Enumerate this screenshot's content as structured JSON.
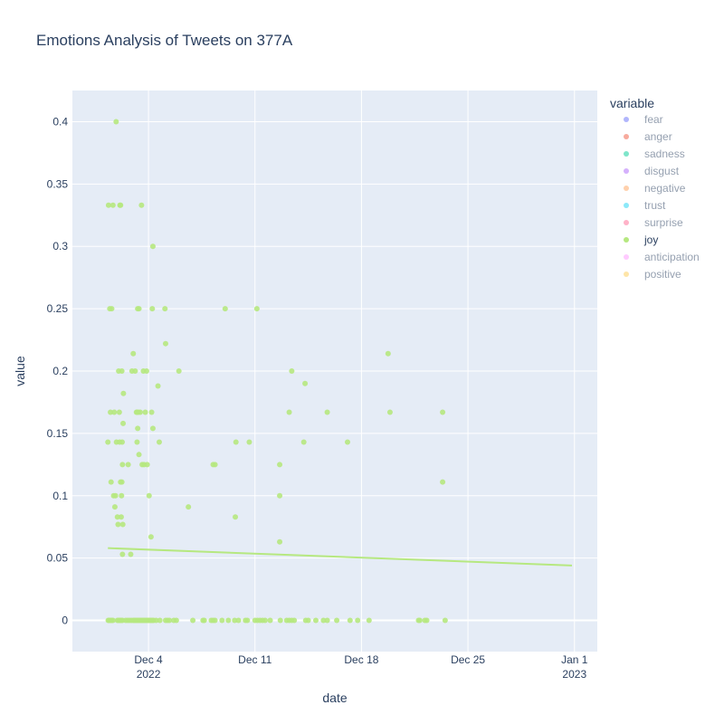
{
  "chart_data": {
    "type": "scatter",
    "title": "Emotions Analysis of Tweets on 377A",
    "xlabel": "date",
    "ylabel": "value",
    "xlim": [
      "2022-11-29T00:00",
      "2023-01-02T12:00"
    ],
    "ylim": [
      -0.025,
      0.425
    ],
    "x_ticks": [
      {
        "date": "2022-12-04",
        "label": "Dec 4",
        "sublabel": "2022"
      },
      {
        "date": "2022-12-11",
        "label": "Dec 11",
        "sublabel": ""
      },
      {
        "date": "2022-12-18",
        "label": "Dec 18",
        "sublabel": ""
      },
      {
        "date": "2022-12-25",
        "label": "Dec 25",
        "sublabel": ""
      },
      {
        "date": "2023-01-01",
        "label": "Jan 1",
        "sublabel": "2023"
      }
    ],
    "y_ticks": [
      {
        "value": 0,
        "label": "0"
      },
      {
        "value": 0.05,
        "label": "0.05"
      },
      {
        "value": 0.1,
        "label": "0.1"
      },
      {
        "value": 0.15,
        "label": "0.15"
      },
      {
        "value": 0.2,
        "label": "0.2"
      },
      {
        "value": 0.25,
        "label": "0.25"
      },
      {
        "value": 0.3,
        "label": "0.3"
      },
      {
        "value": 0.35,
        "label": "0.35"
      },
      {
        "value": 0.4,
        "label": "0.4"
      }
    ],
    "grid": true,
    "legend": {
      "title": "variable",
      "placement": "right",
      "active": "joy",
      "entries": [
        {
          "name": "fear",
          "color": "#636efa"
        },
        {
          "name": "anger",
          "color": "#EF553B"
        },
        {
          "name": "sadness",
          "color": "#00cc96"
        },
        {
          "name": "disgust",
          "color": "#ab63fa"
        },
        {
          "name": "negative",
          "color": "#FFA15A"
        },
        {
          "name": "trust",
          "color": "#19d3f3"
        },
        {
          "name": "surprise",
          "color": "#FF6692"
        },
        {
          "name": "joy",
          "color": "#B6E880"
        },
        {
          "name": "anticipation",
          "color": "#FF97FF"
        },
        {
          "name": "positive",
          "color": "#FECB52"
        }
      ]
    },
    "series": [
      {
        "name": "joy",
        "color": "#B6E880",
        "points": [
          [
            "2022-12-01T08:00",
            0.143
          ],
          [
            "2022-12-01T09:00",
            0.333
          ],
          [
            "2022-12-01T12:00",
            0.167
          ],
          [
            "2022-12-01T11:00",
            0.25
          ],
          [
            "2022-12-01T13:00",
            0.111
          ],
          [
            "2022-12-01T14:00",
            0.25
          ],
          [
            "2022-12-01T16:00",
            0.333
          ],
          [
            "2022-12-01T17:00",
            0.1
          ],
          [
            "2022-12-01T18:00",
            0.167
          ],
          [
            "2022-12-01T19:00",
            0.091
          ],
          [
            "2022-12-01T20:00",
            0.1
          ],
          [
            "2022-12-01T21:00",
            0.4
          ],
          [
            "2022-12-01T21:30",
            0.143
          ],
          [
            "2022-12-01T23:00",
            0.083
          ],
          [
            "2022-12-02T00:00",
            0.077
          ],
          [
            "2022-12-02T01:00",
            0.2
          ],
          [
            "2022-12-02T02:00",
            0.167
          ],
          [
            "2022-12-02T02:30",
            0.143
          ],
          [
            "2022-12-02T03:00",
            0.333
          ],
          [
            "2022-12-02T04:00",
            0.333
          ],
          [
            "2022-12-02T04:00",
            0.111
          ],
          [
            "2022-12-02T05:00",
            0.083
          ],
          [
            "2022-12-02T05:30",
            0.1
          ],
          [
            "2022-12-02T06:00",
            0.111
          ],
          [
            "2022-12-02T06:00",
            0.2
          ],
          [
            "2022-12-02T06:30",
            0.143
          ],
          [
            "2022-12-02T07:00",
            0.125
          ],
          [
            "2022-12-02T07:00",
            0.053
          ],
          [
            "2022-12-02T07:30",
            0.077
          ],
          [
            "2022-12-02T08:00",
            0.158
          ],
          [
            "2022-12-02T08:30",
            0.182
          ],
          [
            "2022-12-02T16:00",
            0.125
          ],
          [
            "2022-12-02T20:00",
            0.053
          ],
          [
            "2022-12-02T22:00",
            0.2
          ],
          [
            "2022-12-03T00:00",
            0.214
          ],
          [
            "2022-12-03T03:00",
            0.2
          ],
          [
            "2022-12-03T05:00",
            0.167
          ],
          [
            "2022-12-03T06:00",
            0.167
          ],
          [
            "2022-12-03T06:00",
            0.143
          ],
          [
            "2022-12-03T07:00",
            0.25
          ],
          [
            "2022-12-03T07:00",
            0.154
          ],
          [
            "2022-12-03T08:00",
            0.167
          ],
          [
            "2022-12-03T09:00",
            0.25
          ],
          [
            "2022-12-03T09:00",
            0.133
          ],
          [
            "2022-12-03T11:00",
            0.167
          ],
          [
            "2022-12-03T13:00",
            0.333
          ],
          [
            "2022-12-03T14:00",
            0.125
          ],
          [
            "2022-12-03T16:00",
            0.2
          ],
          [
            "2022-12-03T17:00",
            0.125
          ],
          [
            "2022-12-03T19:00",
            0.167
          ],
          [
            "2022-12-03T21:00",
            0.2
          ],
          [
            "2022-12-03T22:00",
            0.125
          ],
          [
            "2022-12-04T01:00",
            0.1
          ],
          [
            "2022-12-04T04:00",
            0.067
          ],
          [
            "2022-12-04T06:00",
            0.25
          ],
          [
            "2022-12-04T05:00",
            0.167
          ],
          [
            "2022-12-04T07:00",
            0.3
          ],
          [
            "2022-12-04T07:00",
            0.154
          ],
          [
            "2022-12-04T15:00",
            0.188
          ],
          [
            "2022-12-04T17:00",
            0.143
          ],
          [
            "2022-12-05T02:00",
            0.25
          ],
          [
            "2022-12-05T03:00",
            0.222
          ],
          [
            "2022-12-06T00:00",
            0.2
          ],
          [
            "2022-12-06T15:00",
            0.091
          ],
          [
            "2022-12-08T06:00",
            0.125
          ],
          [
            "2022-12-08T09:00",
            0.125
          ],
          [
            "2022-12-09T01:00",
            0.25
          ],
          [
            "2022-12-09T18:00",
            0.143
          ],
          [
            "2022-12-09T17:00",
            0.083
          ],
          [
            "2022-12-10T15:00",
            0.143
          ],
          [
            "2022-12-11T03:00",
            0.25
          ],
          [
            "2022-12-12T15:00",
            0.125
          ],
          [
            "2022-12-12T15:00",
            0.1
          ],
          [
            "2022-12-12T15:00",
            0.063
          ],
          [
            "2022-12-13T06:00",
            0.167
          ],
          [
            "2022-12-13T10:00",
            0.2
          ],
          [
            "2022-12-14T05:00",
            0.143
          ],
          [
            "2022-12-14T07:00",
            0.19
          ],
          [
            "2022-12-15T18:00",
            0.167
          ],
          [
            "2022-12-17T02:00",
            0.143
          ],
          [
            "2022-12-19T18:00",
            0.214
          ],
          [
            "2022-12-19T21:00",
            0.167
          ],
          [
            "2022-12-23T08:00",
            0.167
          ],
          [
            "2022-12-23T08:00",
            0.111
          ],
          [
            "2022-12-01T08:30",
            0
          ],
          [
            "2022-12-01T10:00",
            0
          ],
          [
            "2022-12-01T12:00",
            0
          ],
          [
            "2022-12-01T14:00",
            0
          ],
          [
            "2022-12-01T16:00",
            0
          ],
          [
            "2022-12-01T23:00",
            0
          ],
          [
            "2022-12-02T01:00",
            0
          ],
          [
            "2022-12-02T03:00",
            0
          ],
          [
            "2022-12-02T05:00",
            0
          ],
          [
            "2022-12-02T07:00",
            0
          ],
          [
            "2022-12-02T12:00",
            0
          ],
          [
            "2022-12-02T15:00",
            0
          ],
          [
            "2022-12-02T18:00",
            0
          ],
          [
            "2022-12-02T21:00",
            0
          ],
          [
            "2022-12-03T00:00",
            0
          ],
          [
            "2022-12-03T02:00",
            0
          ],
          [
            "2022-12-03T04:00",
            0
          ],
          [
            "2022-12-03T06:00",
            0
          ],
          [
            "2022-12-03T08:00",
            0
          ],
          [
            "2022-12-03T10:00",
            0
          ],
          [
            "2022-12-03T12:00",
            0
          ],
          [
            "2022-12-03T14:00",
            0
          ],
          [
            "2022-12-03T16:00",
            0
          ],
          [
            "2022-12-03T18:00",
            0
          ],
          [
            "2022-12-03T20:00",
            0
          ],
          [
            "2022-12-03T22:00",
            0
          ],
          [
            "2022-12-04T00:00",
            0
          ],
          [
            "2022-12-04T02:00",
            0
          ],
          [
            "2022-12-04T04:00",
            0
          ],
          [
            "2022-12-04T06:00",
            0
          ],
          [
            "2022-12-04T08:00",
            0
          ],
          [
            "2022-12-04T12:00",
            0
          ],
          [
            "2022-12-04T18:00",
            0
          ],
          [
            "2022-12-05T03:00",
            0
          ],
          [
            "2022-12-05T06:00",
            0
          ],
          [
            "2022-12-05T09:00",
            0
          ],
          [
            "2022-12-05T16:00",
            0
          ],
          [
            "2022-12-05T20:00",
            0
          ],
          [
            "2022-12-06T22:00",
            0
          ],
          [
            "2022-12-07T14:00",
            0
          ],
          [
            "2022-12-07T16:00",
            0
          ],
          [
            "2022-12-08T03:00",
            0
          ],
          [
            "2022-12-08T06:00",
            0
          ],
          [
            "2022-12-08T09:00",
            0
          ],
          [
            "2022-12-08T20:00",
            0
          ],
          [
            "2022-12-09T06:00",
            0
          ],
          [
            "2022-12-09T16:00",
            0
          ],
          [
            "2022-12-09T22:00",
            0
          ],
          [
            "2022-12-10T09:00",
            0
          ],
          [
            "2022-12-10T12:00",
            0
          ],
          [
            "2022-12-11T00:00",
            0
          ],
          [
            "2022-12-11T04:00",
            0
          ],
          [
            "2022-12-11T08:00",
            0
          ],
          [
            "2022-12-11T12:00",
            0
          ],
          [
            "2022-12-11T16:00",
            0
          ],
          [
            "2022-12-12T00:00",
            0
          ],
          [
            "2022-12-12T16:00",
            0
          ],
          [
            "2022-12-13T02:00",
            0
          ],
          [
            "2022-12-13T06:00",
            0
          ],
          [
            "2022-12-13T10:00",
            0
          ],
          [
            "2022-12-13T14:00",
            0
          ],
          [
            "2022-12-14T08:00",
            0
          ],
          [
            "2022-12-14T12:00",
            0
          ],
          [
            "2022-12-15T00:00",
            0
          ],
          [
            "2022-12-15T12:00",
            0
          ],
          [
            "2022-12-15T18:00",
            0
          ],
          [
            "2022-12-16T09:00",
            0
          ],
          [
            "2022-12-17T06:00",
            0
          ],
          [
            "2022-12-17T18:00",
            0
          ],
          [
            "2022-12-18T12:00",
            0
          ],
          [
            "2022-12-21T18:00",
            0
          ],
          [
            "2022-12-22T07:00",
            0
          ],
          [
            "2022-12-21T20:00",
            0
          ],
          [
            "2022-12-22T04:00",
            0
          ],
          [
            "2022-12-23T12:00",
            0
          ]
        ]
      }
    ],
    "trendline": {
      "name": "joy",
      "color": "#B6E880",
      "start": [
        "2022-12-01T08:00",
        0.058
      ],
      "end": [
        "2022-12-31T20:00",
        0.044
      ]
    }
  }
}
